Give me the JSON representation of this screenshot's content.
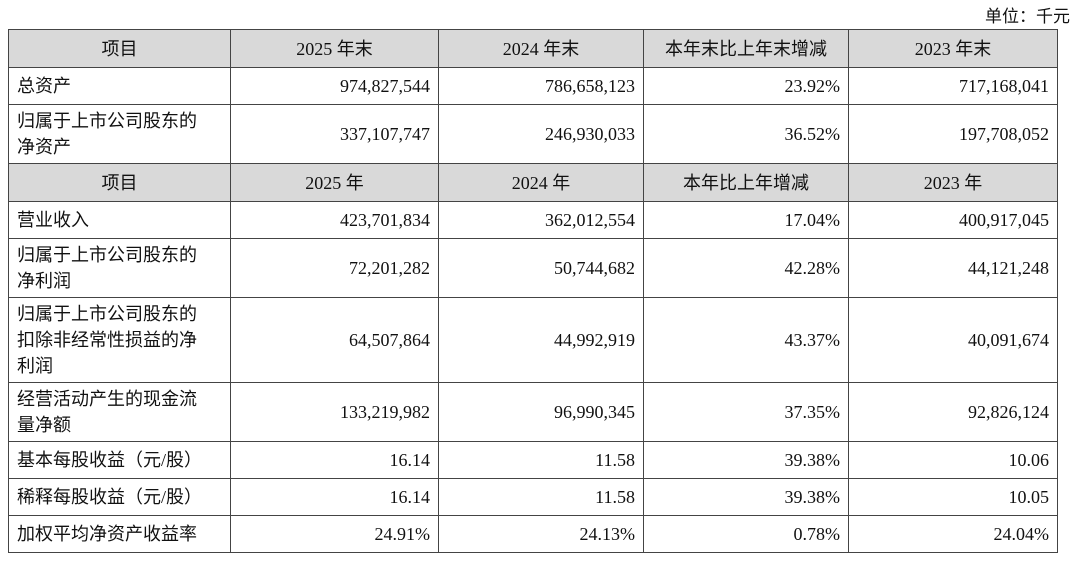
{
  "unit": "单位：千元",
  "balance": {
    "header": [
      "项目",
      "2025 年末",
      "2024 年末",
      "本年末比上年末增减",
      "2023 年末"
    ],
    "rows": [
      [
        "总资产",
        "974,827,544",
        "786,658,123",
        "23.92%",
        "717,168,041"
      ],
      [
        "归属于上市公司股东的净资产",
        "337,107,747",
        "246,930,033",
        "36.52%",
        "197,708,052"
      ]
    ]
  },
  "income": {
    "header": [
      "项目",
      "2025 年",
      "2024 年",
      "本年比上年增减",
      "2023 年"
    ],
    "rows": [
      [
        "营业收入",
        "423,701,834",
        "362,012,554",
        "17.04%",
        "400,917,045"
      ],
      [
        "归属于上市公司股东的净利润",
        "72,201,282",
        "50,744,682",
        "42.28%",
        "44,121,248"
      ],
      [
        "归属于上市公司股东的扣除非经常性损益的净利润",
        "64,507,864",
        "44,992,919",
        "43.37%",
        "40,091,674"
      ],
      [
        "经营活动产生的现金流量净额",
        "133,219,982",
        "96,990,345",
        "37.35%",
        "92,826,124"
      ],
      [
        "基本每股收益（元/股）",
        "16.14",
        "11.58",
        "39.38%",
        "10.06"
      ],
      [
        "稀释每股收益（元/股）",
        "16.14",
        "11.58",
        "39.38%",
        "10.05"
      ],
      [
        "加权平均净资产收益率",
        "24.91%",
        "24.13%",
        "0.78%",
        "24.04%"
      ]
    ]
  }
}
